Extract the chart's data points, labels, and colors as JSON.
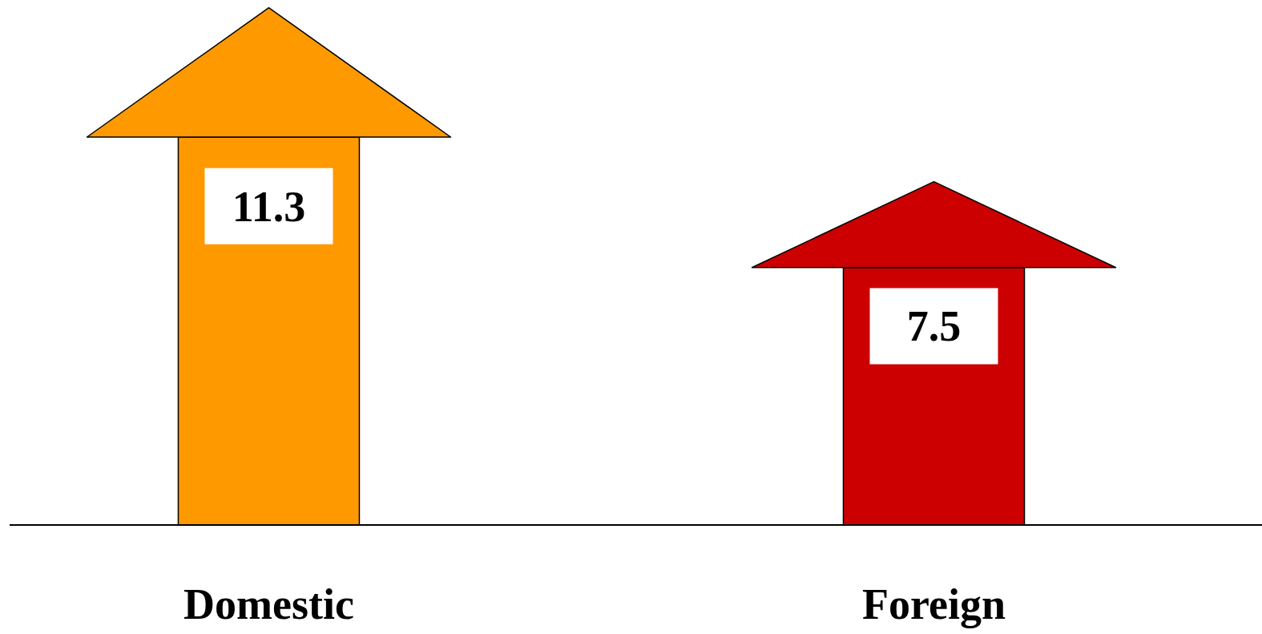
{
  "chart_data": {
    "type": "bar",
    "categories": [
      "Domestic",
      "Foreign"
    ],
    "values": [
      11.3,
      7.5
    ],
    "colors": [
      "#ff9900",
      "#cc0000"
    ],
    "data_labels": true
  }
}
